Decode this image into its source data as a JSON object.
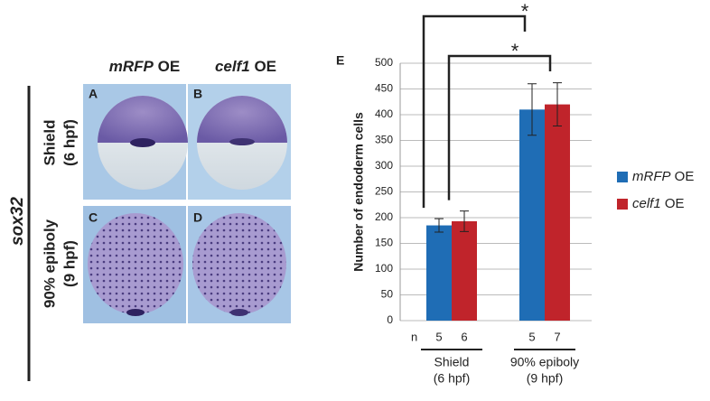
{
  "panels": {
    "columns": [
      "mRFP OE",
      "celf1 OE"
    ],
    "rows": [
      [
        "Shield",
        "(6 hpf)"
      ],
      [
        "90% epiboly",
        "(9 hpf)"
      ]
    ],
    "gene": "sox32",
    "images": [
      "A",
      "B",
      "C",
      "D"
    ]
  },
  "chart_data": {
    "type": "bar",
    "panel_label": "E",
    "ylabel": "Number of endoderm cells",
    "categories": [
      [
        "Shield",
        "(6 hpf)"
      ],
      [
        "90% epiboly",
        "(9 hpf)"
      ]
    ],
    "series": [
      {
        "name": "mRFP OE",
        "color": "#1f6db5",
        "values": [
          185,
          410
        ],
        "errors": [
          13,
          50
        ],
        "n": [
          5,
          5
        ]
      },
      {
        "name": "celf1 OE",
        "color": "#c0242b",
        "values": [
          193,
          420
        ],
        "errors": [
          20,
          42
        ],
        "n": [
          6,
          7
        ]
      }
    ],
    "n_label": "n",
    "annotations": [
      "*",
      "*"
    ],
    "ylim": [
      0,
      500
    ],
    "yticks": [
      0,
      50,
      100,
      150,
      200,
      250,
      300,
      350,
      400,
      450,
      500
    ],
    "grid": true,
    "legend": "right"
  }
}
